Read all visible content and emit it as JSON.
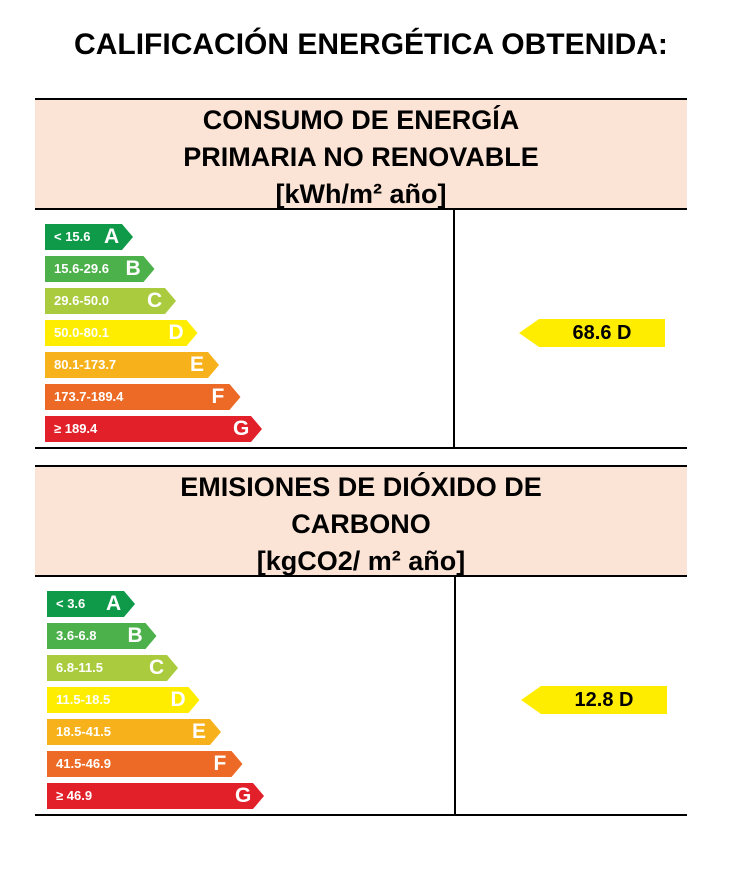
{
  "title": "CALIFICACIÓN ENERGÉTICA OBTENIDA:",
  "sections": [
    {
      "header": [
        "CONSUMO DE ENERGÍA",
        "PRIMARIA NO RENOVABLE",
        "[kWh/m² año]"
      ],
      "scale": [
        {
          "range": "< 15.6",
          "letter": "A",
          "color": "#0f9a4a"
        },
        {
          "range": "15.6-29.6",
          "letter": "B",
          "color": "#4db14b"
        },
        {
          "range": "29.6-50.0",
          "letter": "C",
          "color": "#a9cb3d"
        },
        {
          "range": "50.0-80.1",
          "letter": "D",
          "color": "#ffed00"
        },
        {
          "range": "80.1-173.7",
          "letter": "E",
          "color": "#f7b21b"
        },
        {
          "range": "173.7-189.4",
          "letter": "F",
          "color": "#ec6a25"
        },
        {
          "range": "≥ 189.4",
          "letter": "G",
          "color": "#e2202a"
        }
      ],
      "result": {
        "value": "68.6 D",
        "letter": "D",
        "color": "#ffed00"
      }
    },
    {
      "header": [
        "EMISIONES DE DIÓXIDO DE",
        "CARBONO",
        "[kgCO2/ m² año]"
      ],
      "scale": [
        {
          "range": "< 3.6",
          "letter": "A",
          "color": "#0f9a4a"
        },
        {
          "range": "3.6-6.8",
          "letter": "B",
          "color": "#4db14b"
        },
        {
          "range": "6.8-11.5",
          "letter": "C",
          "color": "#a9cb3d"
        },
        {
          "range": "11.5-18.5",
          "letter": "D",
          "color": "#ffed00"
        },
        {
          "range": "18.5-41.5",
          "letter": "E",
          "color": "#f7b21b"
        },
        {
          "range": "41.5-46.9",
          "letter": "F",
          "color": "#ec6a25"
        },
        {
          "range": "≥ 46.9",
          "letter": "G",
          "color": "#e2202a"
        }
      ],
      "result": {
        "value": "12.8 D",
        "letter": "D",
        "color": "#ffed00"
      }
    }
  ]
}
